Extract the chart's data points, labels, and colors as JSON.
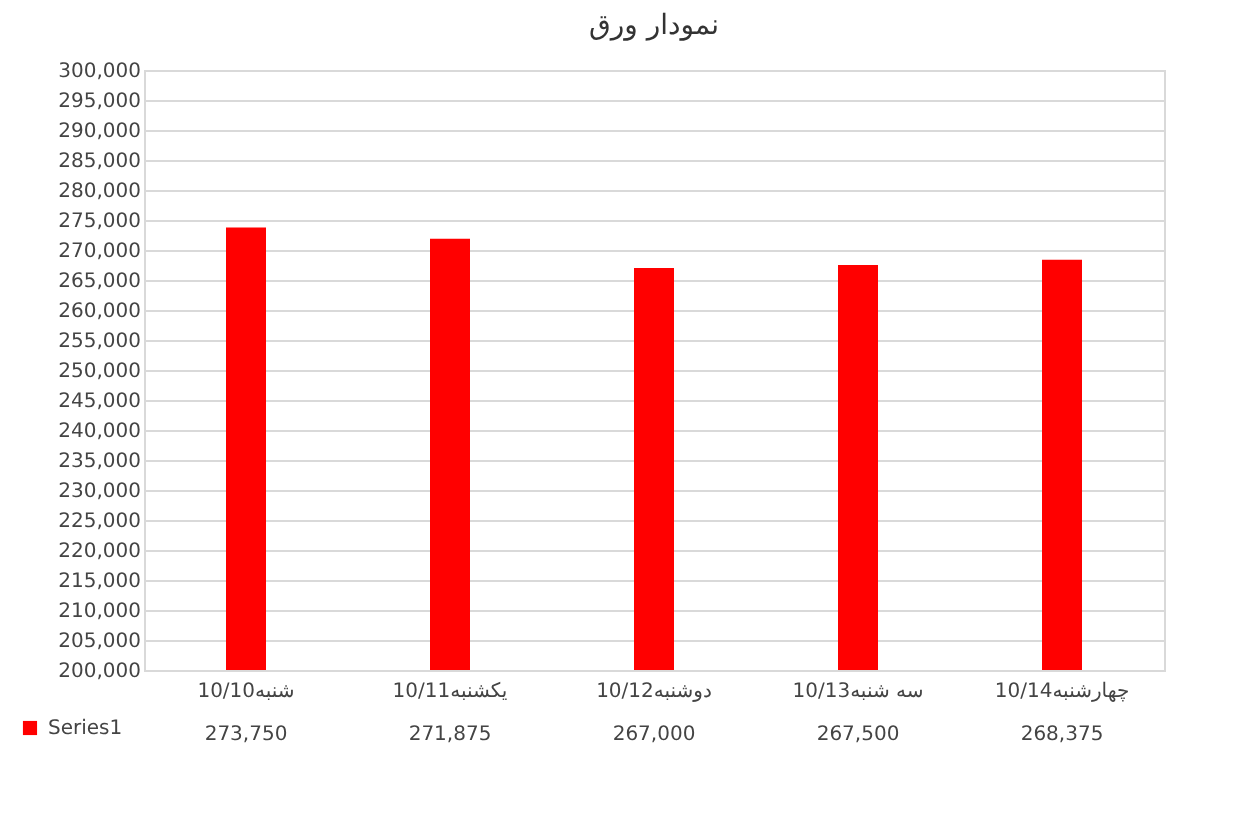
{
  "chart_data": {
    "type": "bar",
    "title": "نمودار ورق",
    "categories": [
      "شنبه10/10",
      "یکشنبه10/11",
      "دوشنبه10/12",
      "سه شنبه10/13",
      "چهارشنبه10/14"
    ],
    "series": [
      {
        "name": "Series1",
        "color": "#ff0000",
        "values": [
          273750,
          271875,
          267000,
          267500,
          268375
        ],
        "value_labels": [
          "273,750",
          "271,875",
          "267,000",
          "267,500",
          "268,375"
        ]
      }
    ],
    "ylim": [
      200000,
      300000
    ],
    "yticks": [
      {
        "value": 200000,
        "label": "200,000"
      },
      {
        "value": 205000,
        "label": "205,000"
      },
      {
        "value": 210000,
        "label": "210,000"
      },
      {
        "value": 215000,
        "label": "215,000"
      },
      {
        "value": 220000,
        "label": "220,000"
      },
      {
        "value": 225000,
        "label": "225,000"
      },
      {
        "value": 230000,
        "label": "230,000"
      },
      {
        "value": 235000,
        "label": "235,000"
      },
      {
        "value": 240000,
        "label": "240,000"
      },
      {
        "value": 245000,
        "label": "245,000"
      },
      {
        "value": 250000,
        "label": "250,000"
      },
      {
        "value": 255000,
        "label": "255,000"
      },
      {
        "value": 260000,
        "label": "260,000"
      },
      {
        "value": 265000,
        "label": "265,000"
      },
      {
        "value": 270000,
        "label": "270,000"
      },
      {
        "value": 275000,
        "label": "275,000"
      },
      {
        "value": 280000,
        "label": "280,000"
      },
      {
        "value": 285000,
        "label": "285,000"
      },
      {
        "value": 290000,
        "label": "290,000"
      },
      {
        "value": 295000,
        "label": "295,000"
      },
      {
        "value": 300000,
        "label": "300,000"
      }
    ],
    "grid": "y",
    "legend": "bottom left"
  }
}
